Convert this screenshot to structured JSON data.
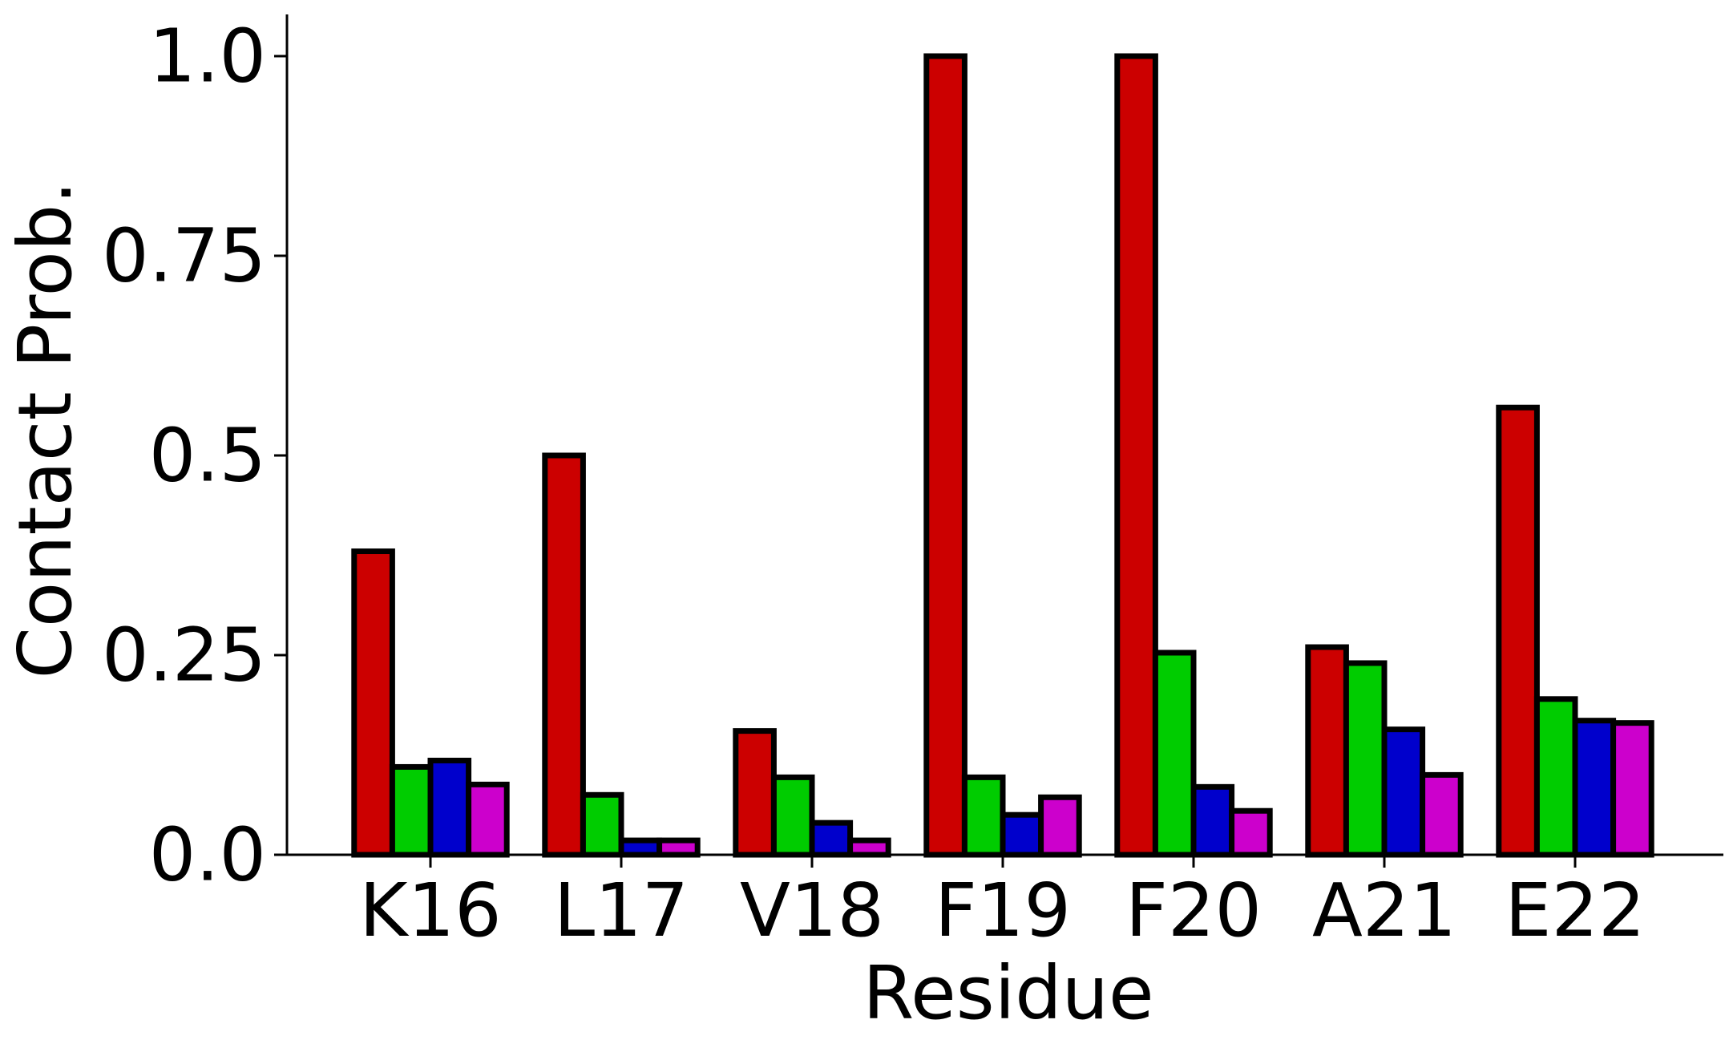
{
  "chart_data": {
    "type": "bar",
    "title": "",
    "xlabel": "Residue",
    "ylabel": "Contact Prob.",
    "categories": [
      "K16",
      "L17",
      "V18",
      "F19",
      "F20",
      "A21",
      "E22"
    ],
    "series": [
      {
        "color": "#cc0000",
        "values": [
          0.38,
          0.5,
          0.155,
          1.0,
          1.0,
          0.26,
          0.56
        ]
      },
      {
        "color": "#00cc00",
        "values": [
          0.11,
          0.075,
          0.097,
          0.097,
          0.253,
          0.24,
          0.195
        ]
      },
      {
        "color": "#0000cc",
        "values": [
          0.118,
          0.018,
          0.04,
          0.05,
          0.085,
          0.157,
          0.168
        ]
      },
      {
        "color": "#cc00cc",
        "values": [
          0.088,
          0.018,
          0.018,
          0.072,
          0.055,
          0.1,
          0.165
        ]
      }
    ],
    "yticks": [
      0.0,
      0.25,
      0.5,
      0.75,
      1.0
    ],
    "ytick_labels": [
      "0.0",
      "0.25",
      "0.5",
      "0.75",
      "1.0"
    ],
    "ylim": [
      0,
      1.05
    ],
    "grid": false,
    "legend": "none"
  }
}
